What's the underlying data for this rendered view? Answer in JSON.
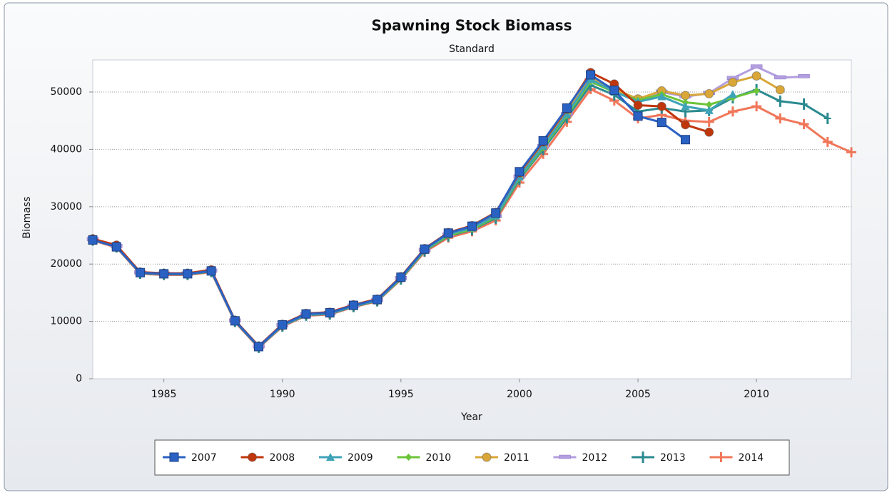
{
  "chart_data": {
    "type": "line",
    "title": "Spawning Stock Biomass",
    "subtitle": "Standard",
    "x_label": "Year",
    "y_label": "Biomass",
    "x": [
      1982,
      1983,
      1984,
      1985,
      1986,
      1987,
      1988,
      1989,
      1990,
      1991,
      1992,
      1993,
      1994,
      1995,
      1996,
      1997,
      1998,
      1999,
      2000,
      2001,
      2002,
      2003,
      2004,
      2005,
      2006,
      2007,
      2008,
      2009,
      2010,
      2011,
      2012,
      2013,
      2014
    ],
    "xlim": [
      1982,
      2014
    ],
    "xticks": [
      1985,
      1990,
      1995,
      2000,
      2005,
      2010
    ],
    "ylim": [
      0,
      55600
    ],
    "yticks": [
      0,
      10000,
      20000,
      30000,
      40000,
      50000
    ],
    "grid": true,
    "legend": "bottom",
    "series": [
      {
        "name": "2007",
        "color": "#2a62c4",
        "marker": "square",
        "values": [
          24200,
          23000,
          18500,
          18300,
          18300,
          18800,
          10100,
          5600,
          9400,
          11300,
          11500,
          12800,
          13800,
          17700,
          22600,
          25400,
          26600,
          28900,
          36100,
          41500,
          47200,
          53000,
          50300,
          45800,
          44700,
          41700,
          null,
          null,
          null,
          null,
          null,
          null,
          null
        ]
      },
      {
        "name": "2008",
        "color": "#c0360c",
        "marker": "circle",
        "values": [
          24400,
          23300,
          18600,
          18400,
          18400,
          19000,
          10200,
          5700,
          9500,
          11400,
          11600,
          12900,
          13900,
          17800,
          22700,
          25500,
          26700,
          29000,
          35900,
          41300,
          47000,
          53400,
          51400,
          47700,
          47500,
          44300,
          43000,
          null,
          null,
          null,
          null,
          null,
          null
        ]
      },
      {
        "name": "2009",
        "color": "#3fa3b8",
        "marker": "triangle",
        "values": [
          24300,
          23100,
          18500,
          18300,
          18300,
          18800,
          10100,
          5600,
          9300,
          11200,
          11400,
          12700,
          13700,
          17600,
          22500,
          25200,
          26300,
          28400,
          35200,
          40600,
          46200,
          52200,
          50100,
          48300,
          49200,
          47500,
          46800,
          49600,
          null,
          null,
          null,
          null,
          null
        ]
      },
      {
        "name": "2010",
        "color": "#6cc43a",
        "marker": "diamond",
        "values": [
          24300,
          23100,
          18500,
          18300,
          18300,
          18800,
          10100,
          5600,
          9300,
          11200,
          11400,
          12700,
          13700,
          17500,
          22400,
          25000,
          26100,
          28200,
          35000,
          40300,
          45900,
          51800,
          50000,
          48600,
          49600,
          48200,
          47800,
          49000,
          50200,
          null,
          null,
          null,
          null
        ]
      },
      {
        "name": "2011",
        "color": "#d9a637",
        "marker": "circle",
        "values": [
          24300,
          23100,
          18500,
          18300,
          18300,
          18800,
          10100,
          5600,
          9300,
          11200,
          11400,
          12700,
          13700,
          17600,
          22500,
          25200,
          26300,
          28500,
          35400,
          40800,
          46400,
          52500,
          50500,
          48800,
          50200,
          49400,
          49700,
          51700,
          52800,
          50400,
          null,
          null,
          null
        ]
      },
      {
        "name": "2012",
        "color": "#b39ee0",
        "marker": "dash",
        "values": [
          24300,
          23100,
          18500,
          18300,
          18300,
          18800,
          10100,
          5600,
          9300,
          11200,
          11400,
          12700,
          13700,
          17500,
          22400,
          25100,
          26200,
          28300,
          35200,
          40500,
          46100,
          52000,
          50200,
          48700,
          50000,
          49200,
          49800,
          52400,
          54400,
          52500,
          52700,
          null,
          null
        ]
      },
      {
        "name": "2013",
        "color": "#2a8a8f",
        "marker": "bar",
        "values": [
          24200,
          23000,
          18400,
          18200,
          18200,
          18700,
          10000,
          5500,
          9200,
          11100,
          11300,
          12600,
          13600,
          17400,
          22300,
          24900,
          26000,
          28000,
          34800,
          40000,
          45500,
          51200,
          49500,
          46600,
          47200,
          46600,
          46800,
          49000,
          50400,
          48400,
          47900,
          45400,
          null
        ]
      },
      {
        "name": "2014",
        "color": "#f0775a",
        "marker": "plus",
        "values": [
          24100,
          22900,
          18300,
          18100,
          18100,
          18600,
          9900,
          5400,
          9100,
          11000,
          11200,
          12500,
          13500,
          17300,
          22100,
          24600,
          25700,
          27600,
          34200,
          39200,
          44800,
          50500,
          48500,
          45400,
          46000,
          45000,
          44800,
          46600,
          47500,
          45400,
          44400,
          41300,
          39500
        ]
      }
    ]
  }
}
